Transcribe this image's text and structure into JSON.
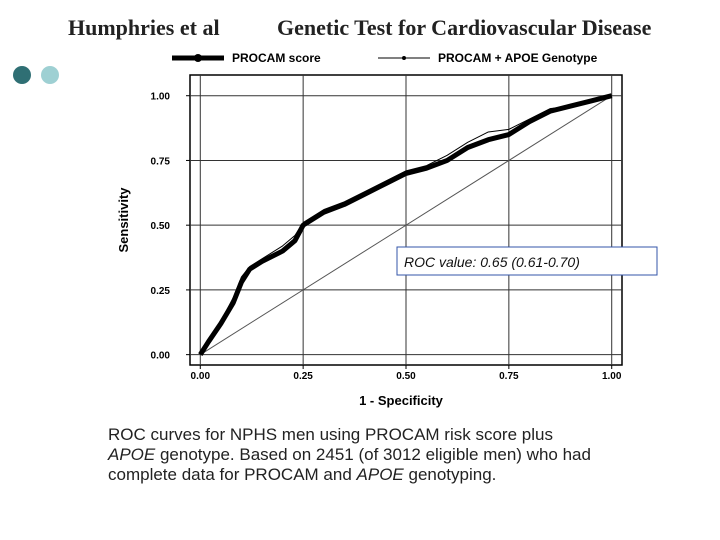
{
  "header": {
    "author": "Humphries et al",
    "title": "Genetic Test for Cardiovascular Disease"
  },
  "chart_data": {
    "type": "line",
    "x": [
      0,
      0.02,
      0.05,
      0.08,
      0.1,
      0.12,
      0.15,
      0.2,
      0.23,
      0.25,
      0.3,
      0.35,
      0.4,
      0.45,
      0.5,
      0.55,
      0.6,
      0.65,
      0.7,
      0.75,
      0.8,
      0.85,
      0.9,
      0.95,
      1
    ],
    "series": [
      {
        "name": "PROCAM score",
        "color": "#000000",
        "line_width": 5,
        "values": [
          0,
          0.05,
          0.12,
          0.2,
          0.28,
          0.33,
          0.36,
          0.4,
          0.44,
          0.5,
          0.55,
          0.58,
          0.62,
          0.66,
          0.7,
          0.72,
          0.75,
          0.8,
          0.83,
          0.85,
          0.9,
          0.94,
          0.96,
          0.98,
          1
        ]
      },
      {
        "name": "PROCAM + APOE Genotype",
        "color": "#000000",
        "line_width": 1,
        "values": [
          0,
          0.06,
          0.13,
          0.22,
          0.3,
          0.34,
          0.37,
          0.42,
          0.46,
          0.51,
          0.56,
          0.59,
          0.63,
          0.67,
          0.71,
          0.73,
          0.77,
          0.82,
          0.86,
          0.87,
          0.91,
          0.95,
          0.96,
          0.98,
          1
        ]
      }
    ],
    "x_label": "1 - Specificity",
    "y_label": "Sensitivity",
    "xlim": [
      -0.025,
      1.025
    ],
    "ylim": [
      -0.04,
      1.08
    ],
    "xticks": [
      {
        "value": 0,
        "label": "0.00"
      },
      {
        "value": 0.25,
        "label": "0.25"
      },
      {
        "value": 0.5,
        "label": "0.50"
      },
      {
        "value": 0.75,
        "label": "0.75"
      },
      {
        "value": 1,
        "label": "1.00"
      }
    ],
    "yticks": [
      {
        "value": 0,
        "label": "0.00"
      },
      {
        "value": 0.25,
        "label": "0.25"
      },
      {
        "value": 0.5,
        "label": "0.50"
      },
      {
        "value": 0.75,
        "label": "0.75"
      },
      {
        "value": 1,
        "label": "1.00"
      }
    ],
    "grid": true,
    "legend": "top",
    "annotation": "ROC value: 0.65 (0.61-0.70)"
  },
  "caption": [
    [
      {
        "text": "ROC curves for NPHS men using PROCAM risk score plus",
        "italic": false
      }
    ],
    [
      {
        "text": "APOE",
        "italic": true
      },
      {
        "text": " genotype. Based on 2451 (of 3012 eligible men) who had",
        "italic": false
      }
    ],
    [
      {
        "text": "complete data for PROCAM and ",
        "italic": false
      },
      {
        "text": "APOE",
        "italic": true
      },
      {
        "text": " genotyping.",
        "italic": false
      }
    ]
  ]
}
